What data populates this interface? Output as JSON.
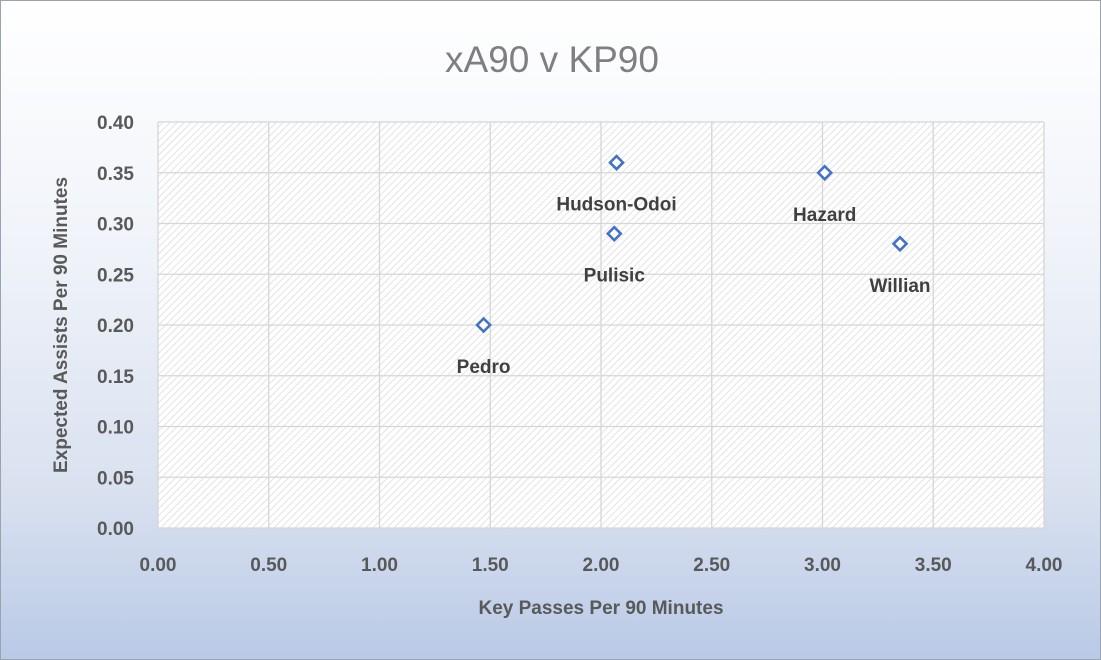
{
  "chart_data": {
    "type": "scatter",
    "title": "xA90 v KP90",
    "xlabel": "Key Passes Per 90 Minutes",
    "ylabel": "Expected Assists Per 90 Minutes",
    "xlim": [
      0,
      4
    ],
    "ylim": [
      0,
      0.4
    ],
    "xticks": [
      "0.00",
      "0.50",
      "1.00",
      "1.50",
      "2.00",
      "2.50",
      "3.00",
      "3.50",
      "4.00"
    ],
    "yticks": [
      "0.00",
      "0.05",
      "0.10",
      "0.15",
      "0.20",
      "0.25",
      "0.30",
      "0.35",
      "0.40"
    ],
    "grid": true,
    "marker_color": "#4472c4",
    "points": [
      {
        "label": "Pedro",
        "x": 1.47,
        "y": 0.2
      },
      {
        "label": "Pulisic",
        "x": 2.06,
        "y": 0.29
      },
      {
        "label": "Hudson-Odoi",
        "x": 2.07,
        "y": 0.36
      },
      {
        "label": "Hazard",
        "x": 3.01,
        "y": 0.35
      },
      {
        "label": "Willian",
        "x": 3.35,
        "y": 0.28
      }
    ]
  }
}
